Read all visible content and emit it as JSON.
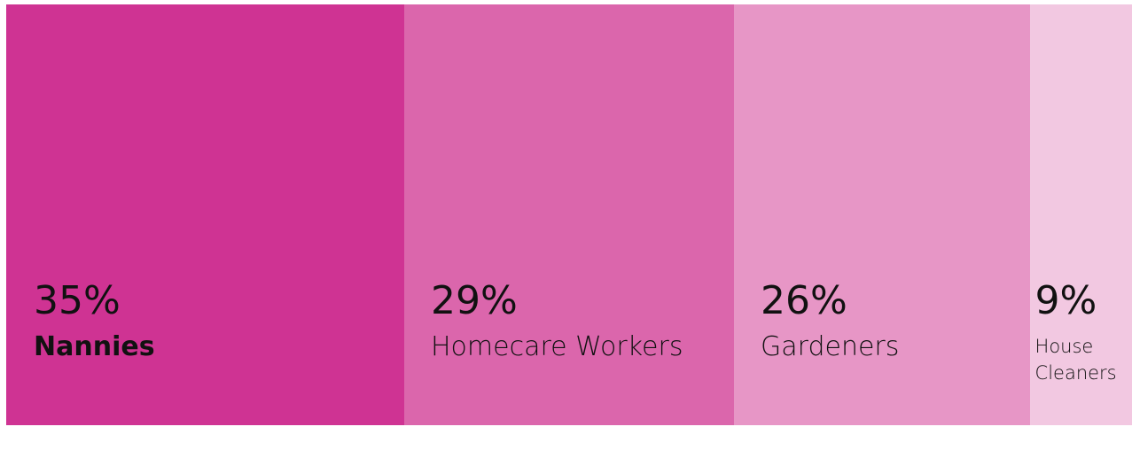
{
  "chart_data": {
    "type": "stacked-bar",
    "categories": [
      "Nannies",
      "Homecare Workers",
      "Gardeners",
      "House Cleaners"
    ],
    "values": [
      35,
      29,
      26,
      9
    ],
    "value_labels": [
      "35%",
      "29%",
      "26%",
      "9%"
    ],
    "colors": [
      "#cf3393",
      "#db66ac",
      "#e796c6",
      "#f2c8e1"
    ]
  }
}
